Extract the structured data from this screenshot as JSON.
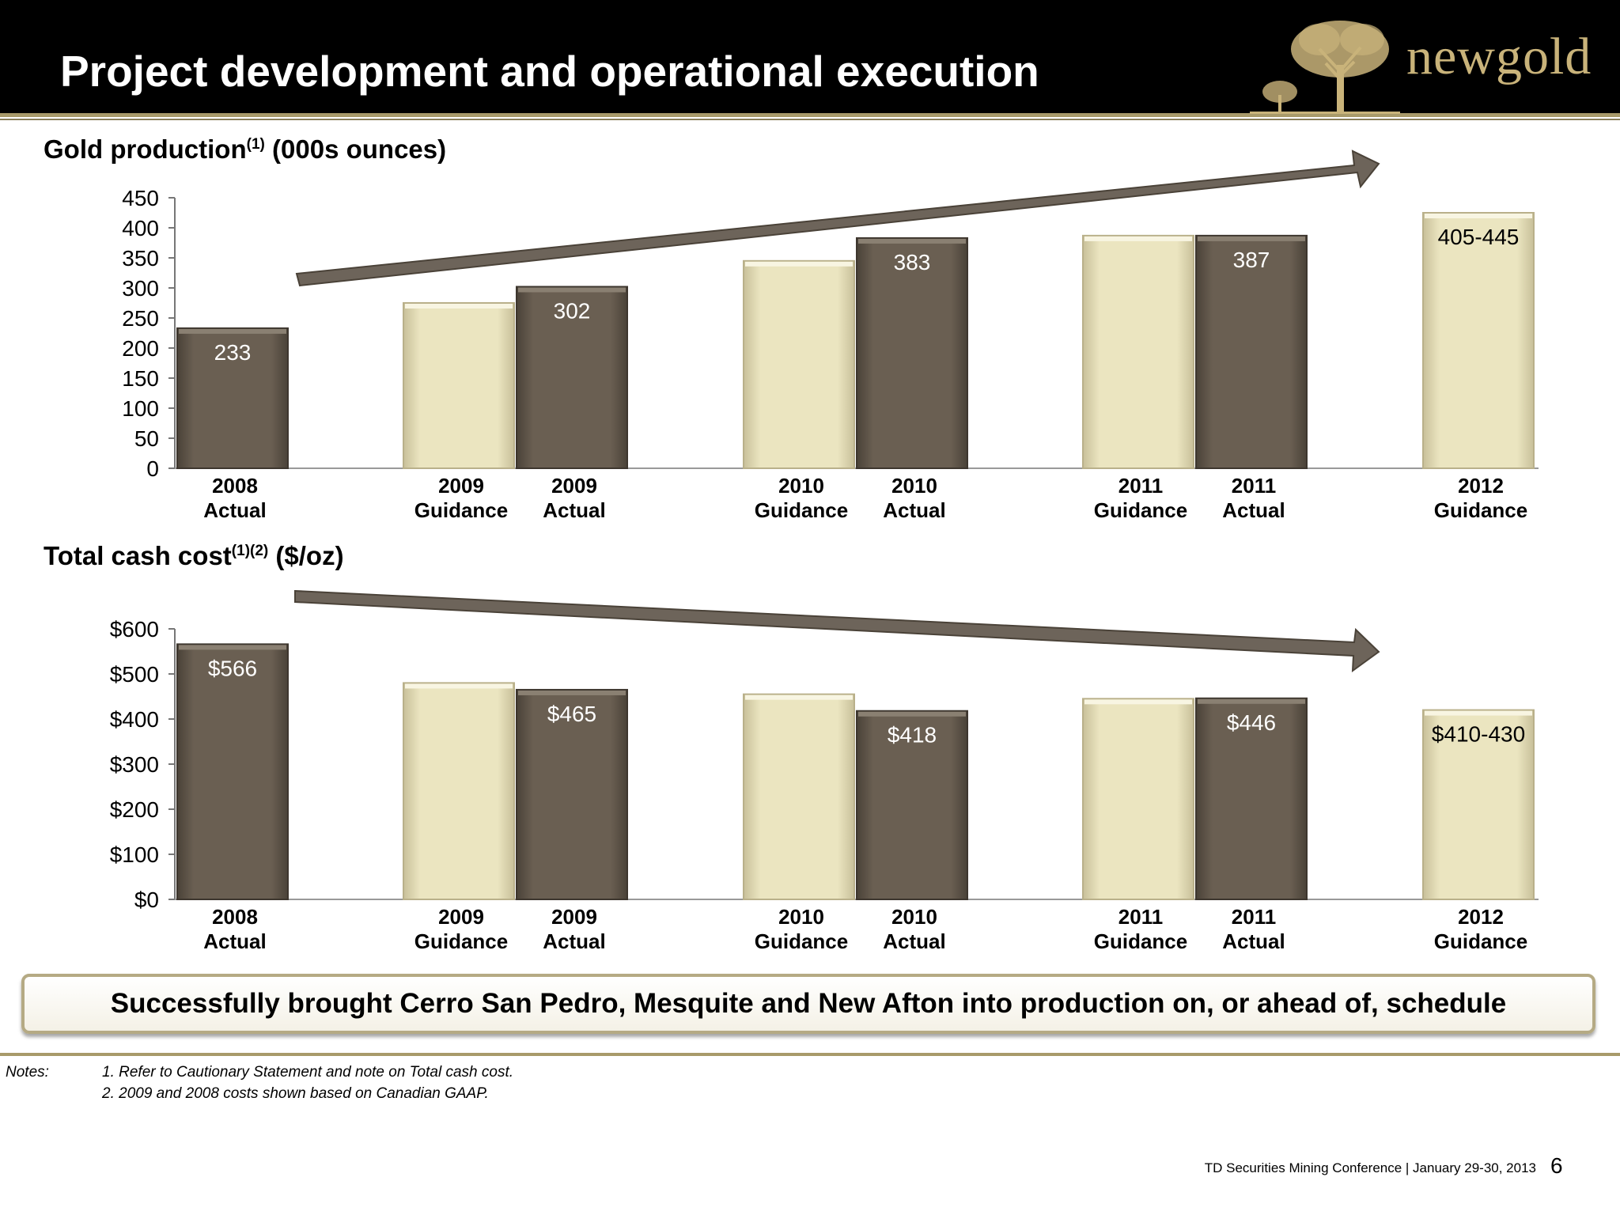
{
  "header": {
    "title": "Project development and operational execution",
    "logo_text": "newgold"
  },
  "chart_data": [
    {
      "type": "bar",
      "title": "Gold production",
      "title_superscript": "(1)",
      "title_units": "(000s ounces)",
      "categories": [
        [
          "2008",
          "Actual"
        ],
        [
          "2009",
          "Guidance"
        ],
        [
          "2009",
          "Actual"
        ],
        [
          "2010",
          "Guidance"
        ],
        [
          "2010",
          "Actual"
        ],
        [
          "2011",
          "Guidance"
        ],
        [
          "2011",
          "Actual"
        ],
        [
          "2012",
          "Guidance"
        ]
      ],
      "values": [
        233,
        275,
        302,
        345,
        383,
        387,
        387,
        425
      ],
      "bar_kind": [
        "actual",
        "guidance",
        "actual",
        "guidance",
        "actual",
        "guidance",
        "actual",
        "guidance"
      ],
      "data_labels": [
        "233",
        "",
        "302",
        "",
        "383",
        "",
        "387",
        "405-445"
      ],
      "ylim": [
        0,
        450
      ],
      "yticks": [
        0,
        50,
        100,
        150,
        200,
        250,
        300,
        350,
        400,
        450
      ],
      "ytick_labels": [
        "0",
        "50",
        "100",
        "150",
        "200",
        "250",
        "300",
        "350",
        "400",
        "450"
      ],
      "trend": "up"
    },
    {
      "type": "bar",
      "title": "Total cash cost",
      "title_superscript": "(1)(2)",
      "title_units": "($/oz)",
      "categories": [
        [
          "2008",
          "Actual"
        ],
        [
          "2009",
          "Guidance"
        ],
        [
          "2009",
          "Actual"
        ],
        [
          "2010",
          "Guidance"
        ],
        [
          "2010",
          "Actual"
        ],
        [
          "2011",
          "Guidance"
        ],
        [
          "2011",
          "Actual"
        ],
        [
          "2012",
          "Guidance"
        ]
      ],
      "values": [
        566,
        480,
        465,
        455,
        418,
        445,
        446,
        420
      ],
      "bar_kind": [
        "actual",
        "guidance",
        "actual",
        "guidance",
        "actual",
        "guidance",
        "actual",
        "guidance"
      ],
      "data_labels": [
        "$566",
        "",
        "$465",
        "",
        "$418",
        "",
        "$446",
        "$410-430"
      ],
      "ylim": [
        0,
        600
      ],
      "yticks": [
        0,
        100,
        200,
        300,
        400,
        500,
        600
      ],
      "ytick_labels": [
        "$0",
        "$100",
        "$200",
        "$300",
        "$400",
        "$500",
        "$600"
      ],
      "trend": "down"
    }
  ],
  "colors": {
    "actual": "#6a5f52",
    "guidance": "#ebe5c0",
    "arrow": "#6d645a",
    "gold": "#c9b37a"
  },
  "callout": "Successfully brought Cerro San Pedro, Mesquite and New Afton into production on, or ahead of, schedule",
  "notes": {
    "label": "Notes:",
    "items": [
      "1. Refer to Cautionary Statement and note on Total cash cost.",
      "2. 2009 and 2008 costs shown based on Canadian GAAP."
    ]
  },
  "footer": {
    "conference": "TD Securities Mining Conference  |  January 29-30, 2013",
    "page": "6"
  }
}
